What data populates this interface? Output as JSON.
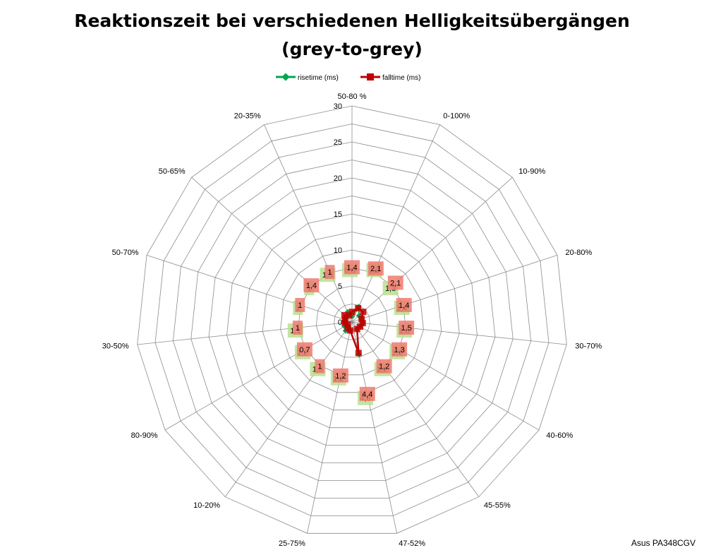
{
  "chart_data": {
    "type": "radar",
    "title_line1": "Reaktionszeit bei verschiedenen Helligkeitsübergängen",
    "title_line2": "(grey-to-grey)",
    "categories": [
      "50-80 %",
      "0-100%",
      "10-90%",
      "20-80%",
      "30-70%",
      "40-60%",
      "45-55%",
      "47-52%",
      "25-75%",
      "10-20%",
      "80-90%",
      "30-50%",
      "50-70%",
      "50-65%",
      "20-35%"
    ],
    "rlim": [
      0,
      30
    ],
    "ticks": [
      0,
      5,
      10,
      15,
      20,
      25,
      30
    ],
    "grid": true,
    "legend_position": "top",
    "series": [
      {
        "name": "risetime (ms)",
        "color": "#00a651",
        "label_bg": "#b8df8f",
        "values": [
          0.8,
          2.3,
          1.3,
          1.4,
          1.5,
          1.3,
          1.2,
          4.6,
          1.2,
          1.5,
          1.2,
          1.1,
          1.0,
          1.0,
          1.5
        ],
        "labels": [
          "0,8",
          "2,3",
          "1,3",
          "1,4",
          "1,5",
          "1,3",
          "1,2",
          "4,6",
          "1,2",
          "1,5",
          "1,2",
          "1,1",
          "1",
          "1",
          "1,5"
        ]
      },
      {
        "name": "falltime (ms)",
        "color": "#c00000",
        "label_bg": "#f07a70",
        "values": [
          1.4,
          2.1,
          2.1,
          1.4,
          1.5,
          1.3,
          1.2,
          4.4,
          1.2,
          1.0,
          0.7,
          1.0,
          1.0,
          1.4,
          1.0
        ],
        "labels": [
          "1,4",
          "2,1",
          "2,1",
          "1,4",
          "1,5",
          "1,3",
          "1,2",
          "4,4",
          "1,2",
          "1",
          "0,7",
          "1",
          "1",
          "1,4",
          "1"
        ]
      }
    ]
  },
  "watermark": "Asus PA348CGV"
}
